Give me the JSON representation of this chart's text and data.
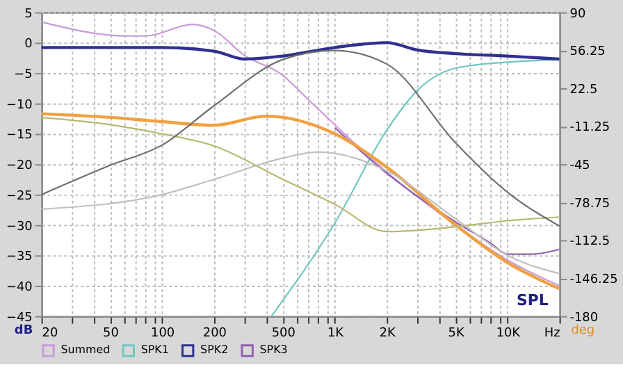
{
  "chart_data": {
    "type": "line",
    "ylabel": "dB",
    "y2label": "deg",
    "x": [
      20,
      50,
      100,
      200,
      500,
      1000,
      2000,
      5000,
      10000,
      20000
    ],
    "series": [
      {
        "name": "Summed",
        "color": "#c89ad8",
        "x": [
          20,
          62,
          80,
          150,
          200,
          300,
          490,
          740,
          2000,
          5000,
          10000,
          20000
        ],
        "values": [
          3.4,
          1.1,
          1.1,
          3,
          2,
          -2.1,
          -5.2,
          -10,
          -21.3,
          -30,
          -35.8,
          -40
        ]
      },
      {
        "name": "SPK1",
        "color": "#70c8c0",
        "x": [
          430,
          1000,
          2000,
          3000,
          5000,
          10000,
          20000
        ],
        "values": [
          -45,
          -29.7,
          -14.4,
          -7.9,
          -4.2,
          -3.2,
          -2.8
        ]
      },
      {
        "name": "SPK2",
        "color": "#303090",
        "x": [
          20,
          100,
          200,
          300,
          500,
          1000,
          2000,
          3000,
          5000,
          10000,
          20000
        ],
        "values": [
          -0.8,
          -0.8,
          -1.4,
          -2.7,
          -2.2,
          -0.8,
          0,
          -1.2,
          -1.8,
          -2.2,
          -2.7
        ]
      },
      {
        "name": "SPK3",
        "color": "#9060b0",
        "x": [
          1000,
          2000,
          5000,
          8000,
          10000,
          14000,
          20000
        ],
        "values": [
          -14,
          -21.5,
          -29.5,
          -33,
          -34.8,
          -34.8,
          -34
        ]
      },
      {
        "color": "#f0a040",
        "values": [
          -11.7,
          -12.3,
          -13,
          -13.6,
          -12.1,
          -15,
          -20.5,
          -30,
          -36.2,
          -40.5
        ],
        "x": [
          20,
          50,
          100,
          200,
          400,
          1000,
          2000,
          5000,
          10000,
          20000
        ]
      },
      {
        "color": "#b8b870",
        "values": [
          -12.3,
          -13.5,
          -15,
          -17,
          -22.5,
          -26.6,
          -31.1,
          -30.3,
          -29.3,
          -28.7
        ]
      },
      {
        "color": "#c0c0c0",
        "x": [
          20,
          100,
          200,
          500,
          800,
          2000,
          5000,
          10000,
          20000
        ],
        "values": [
          -27.4,
          -25,
          -22.5,
          -19,
          -18,
          -21.1,
          -29,
          -35,
          -38
        ]
      },
      {
        "color": "#707070",
        "axis": "y2",
        "values": [
          -72,
          -46,
          -28,
          7,
          48,
          56,
          44,
          -26,
          -70,
          -100
        ]
      }
    ],
    "xlim": [
      20,
      20000
    ],
    "xticks": [
      20,
      {
        "value": 30,
        "label": null
      },
      {
        "value": 40,
        "label": null
      },
      50,
      {
        "value": 60,
        "label": null
      },
      {
        "value": 70,
        "label": null
      },
      {
        "value": 80,
        "label": null
      },
      {
        "value": 90,
        "label": null
      },
      100,
      200,
      {
        "value": 300,
        "label": null
      },
      {
        "value": 400,
        "label": null
      },
      500,
      {
        "value": 600,
        "label": null
      },
      {
        "value": 700,
        "label": null
      },
      {
        "value": 800,
        "label": null
      },
      {
        "value": 900,
        "label": null
      },
      {
        "value": 1000,
        "label": "1K"
      },
      {
        "value": 2000,
        "label": "2K"
      },
      {
        "value": 3000,
        "label": null
      },
      {
        "value": 4000,
        "label": null
      },
      {
        "value": 5000,
        "label": "5K"
      },
      {
        "value": 6000,
        "label": null
      },
      {
        "value": 7000,
        "label": null
      },
      {
        "value": 8000,
        "label": null
      },
      {
        "value": 9000,
        "label": null
      },
      {
        "value": 10000,
        "label": "10K"
      },
      {
        "value": 20000,
        "label": "Hz"
      }
    ],
    "ylim": [
      -45,
      5
    ],
    "yticks": [
      -45,
      -40,
      -35,
      -30,
      -25,
      -20,
      -15,
      -10,
      -5,
      0,
      5
    ],
    "y2lim": [
      -180,
      90
    ],
    "y2ticks": [
      -180,
      -146.25,
      -112.5,
      -78.75,
      -45,
      -11.25,
      22.5,
      56.25,
      90
    ],
    "log": "x",
    "grid": true,
    "legend": "bottom left",
    "marker": "none",
    "line_style": "solid",
    "annotations": [
      "SPL"
    ]
  }
}
